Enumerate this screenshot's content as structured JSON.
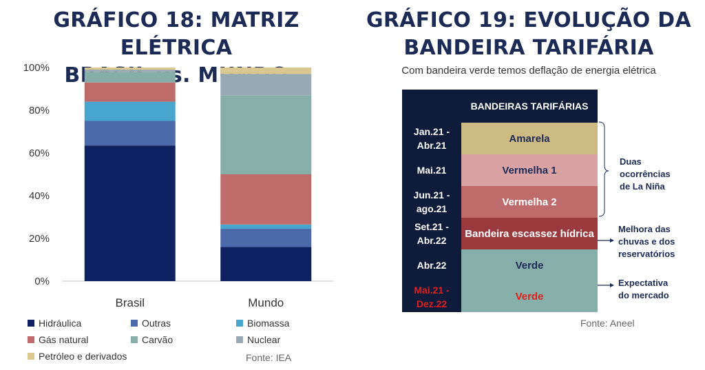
{
  "left": {
    "title_line1": "GRÁFICO 18: MATRIZ ELÉTRICA",
    "title_line2": "BRASIL vs. MUNDO",
    "source": "Fonte: IEA"
  },
  "right": {
    "title_line1": "GRÁFICO 19: EVOLUÇÃO DA",
    "title_line2": "BANDEIRA TARIFÁRIA",
    "subtitle": "Com bandeira verde temos deflação de energia elétrica",
    "source": "Fonte: Aneel",
    "table_header": "BANDEIRAS TARIFÁRIAS",
    "rows": [
      {
        "period_line1": "Jan.21 -",
        "period_line2": "Abr.21",
        "flag": "Amarela",
        "bg": "#cdbb84",
        "fg": "#1c2a55",
        "period_color": "#ffffff"
      },
      {
        "period_line1": "Mai.21",
        "period_line2": "",
        "flag": "Vermelha 1",
        "bg": "#d9a3a5",
        "fg": "#1c2a55",
        "period_color": "#ffffff"
      },
      {
        "period_line1": "Jun.21 -",
        "period_line2": "ago.21",
        "flag": "Vermelha 2",
        "bg": "#bf6b6c",
        "fg": "#ffffff",
        "period_color": "#ffffff"
      },
      {
        "period_line1": "Set.21 -",
        "period_line2": "Abr.22",
        "flag": "Bandeira escassez hídrica",
        "bg": "#9a3a3e",
        "fg": "#ffffff",
        "period_color": "#ffffff"
      },
      {
        "period_line1": "Abr.22",
        "period_line2": "",
        "flag": "Verde",
        "bg": "#87afa9",
        "fg": "#1c2a55",
        "period_color": "#ffffff"
      },
      {
        "period_line1": "Mai.21 -",
        "period_line2": "Dez.22",
        "flag": "Verde",
        "bg": "#87afa9",
        "fg": "#e02020",
        "period_color": "#e02020"
      }
    ],
    "annotations": {
      "la_nina_1": "Duas",
      "la_nina_2": "ocorrências",
      "la_nina_3": "de La Niña",
      "chuvas_1": "Melhora das",
      "chuvas_2": "chuvas e dos",
      "chuvas_3": "reservatórios",
      "expect_1": "Expectativa",
      "expect_2": "do mercado"
    }
  },
  "chart_data": {
    "type": "bar",
    "stacked": true,
    "categories": [
      "Brasil",
      "Mundo"
    ],
    "ylim": [
      0,
      100
    ],
    "yticks": [
      "0%",
      "20%",
      "40%",
      "60%",
      "80%",
      "100%"
    ],
    "series": [
      {
        "name": "Hidráulica",
        "color": "#0f2160",
        "values": [
          63.5,
          16
        ]
      },
      {
        "name": "Outras",
        "color": "#4a6aab",
        "values": [
          11.5,
          8.5
        ]
      },
      {
        "name": "Biomassa",
        "color": "#48a5cc",
        "values": [
          9,
          2
        ]
      },
      {
        "name": "Gás natural",
        "color": "#bf6b6c",
        "values": [
          9,
          23.5
        ]
      },
      {
        "name": "Carvão",
        "color": "#87afa9",
        "values": [
          5,
          37
        ]
      },
      {
        "name": "Nuclear",
        "color": "#9aaab5",
        "values": [
          1,
          10
        ]
      },
      {
        "name": "Petróleo e derivados",
        "color": "#d9c88f",
        "values": [
          1,
          3
        ]
      }
    ]
  }
}
